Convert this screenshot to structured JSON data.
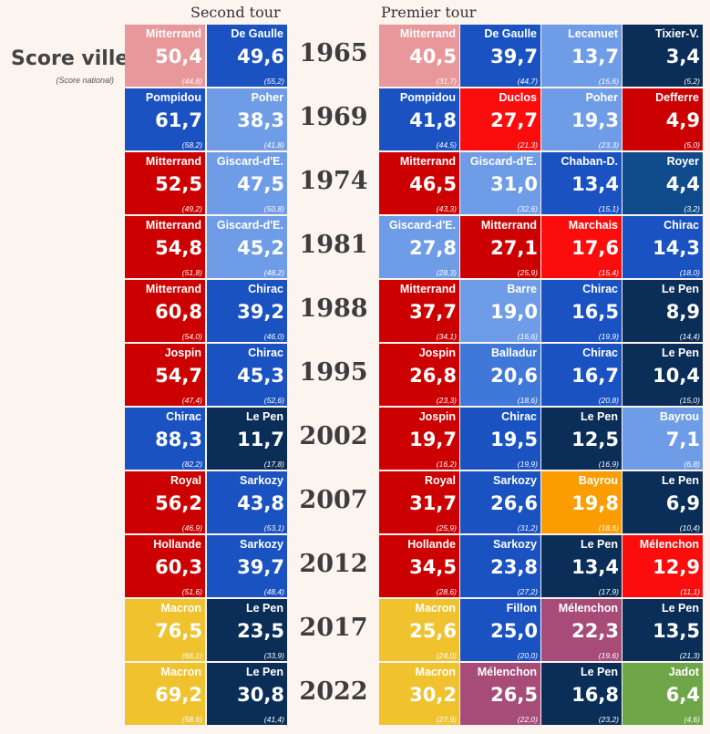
{
  "chart_data": {
    "type": "table",
    "title": "Score ville",
    "subtitle": "(Score national)",
    "headers": {
      "second": "Second tour",
      "first": "Premier tour"
    },
    "colors": {
      "mitterrand65": "#e8979a",
      "gaulle": "#1a52c2",
      "lecanuet": "#6f9ce6",
      "tixier": "#0b2e58",
      "pompidou": "#1a52c2",
      "poher": "#6f9ce6",
      "duclos": "#fb0d0d",
      "defferre": "#cc0000",
      "red": "#cc0000",
      "brightred": "#fb0d0d",
      "giscard": "#6f9ce6",
      "chaban": "#1a52c2",
      "royer": "#104c8c",
      "chirac": "#1a52c2",
      "navy": "#0b2e58",
      "barre": "#6f9ce6",
      "balladur": "#3f78d8",
      "bayrou": "#6f9ce6",
      "bayrou07": "#fb9d00",
      "sarkozy": "#1a52c2",
      "macron": "#f0c22e",
      "fillon": "#1a52c2",
      "melenchon": "#a74b78",
      "jadot": "#6ea648"
    },
    "rows": [
      {
        "year": "1965",
        "second": [
          {
            "name": "Mitterrand",
            "value": "50,4",
            "national": "(44,8)",
            "color": "mitterrand65"
          },
          {
            "name": "De Gaulle",
            "value": "49,6",
            "national": "(55,2)",
            "color": "gaulle"
          }
        ],
        "first": [
          {
            "name": "Mitterrand",
            "value": "40,5",
            "national": "(31,7)",
            "color": "mitterrand65"
          },
          {
            "name": "De Gaulle",
            "value": "39,7",
            "national": "(44,7)",
            "color": "gaulle"
          },
          {
            "name": "Lecanuet",
            "value": "13,7",
            "national": "(15,6)",
            "color": "lecanuet"
          },
          {
            "name": "Tixier-V.",
            "value": "3,4",
            "national": "(5,2)",
            "color": "tixier"
          }
        ]
      },
      {
        "year": "1969",
        "second": [
          {
            "name": "Pompidou",
            "value": "61,7",
            "national": "(58,2)",
            "color": "pompidou"
          },
          {
            "name": "Poher",
            "value": "38,3",
            "national": "(41,8)",
            "color": "poher"
          }
        ],
        "first": [
          {
            "name": "Pompidou",
            "value": "41,8",
            "national": "(44,5)",
            "color": "pompidou"
          },
          {
            "name": "Duclos",
            "value": "27,7",
            "national": "(21,3)",
            "color": "duclos"
          },
          {
            "name": "Poher",
            "value": "19,3",
            "national": "(23,3)",
            "color": "poher"
          },
          {
            "name": "Defferre",
            "value": "4,9",
            "national": "(5,0)",
            "color": "defferre"
          }
        ]
      },
      {
        "year": "1974",
        "second": [
          {
            "name": "Mitterrand",
            "value": "52,5",
            "national": "(49,2)",
            "color": "red"
          },
          {
            "name": "Giscard-d'E.",
            "value": "47,5",
            "national": "(50,8)",
            "color": "giscard"
          }
        ],
        "first": [
          {
            "name": "Mitterrand",
            "value": "46,5",
            "national": "(43,3)",
            "color": "red"
          },
          {
            "name": "Giscard-d'E.",
            "value": "31,0",
            "national": "(32,6)",
            "color": "giscard"
          },
          {
            "name": "Chaban-D.",
            "value": "13,4",
            "national": "(15,1)",
            "color": "chaban"
          },
          {
            "name": "Royer",
            "value": "4,4",
            "national": "(3,2)",
            "color": "royer"
          }
        ]
      },
      {
        "year": "1981",
        "second": [
          {
            "name": "Mitterrand",
            "value": "54,8",
            "national": "(51,8)",
            "color": "red"
          },
          {
            "name": "Giscard-d'E.",
            "value": "45,2",
            "national": "(48,2)",
            "color": "giscard"
          }
        ],
        "first": [
          {
            "name": "Giscard-d'E.",
            "value": "27,8",
            "national": "(28,3)",
            "color": "giscard"
          },
          {
            "name": "Mitterrand",
            "value": "27,1",
            "national": "(25,9)",
            "color": "red"
          },
          {
            "name": "Marchais",
            "value": "17,6",
            "national": "(15,4)",
            "color": "brightred"
          },
          {
            "name": "Chirac",
            "value": "14,3",
            "national": "(18,0)",
            "color": "chirac"
          }
        ]
      },
      {
        "year": "1988",
        "second": [
          {
            "name": "Mitterrand",
            "value": "60,8",
            "national": "(54,0)",
            "color": "red"
          },
          {
            "name": "Chirac",
            "value": "39,2",
            "national": "(46,0)",
            "color": "chirac"
          }
        ],
        "first": [
          {
            "name": "Mitterrand",
            "value": "37,7",
            "national": "(34,1)",
            "color": "red"
          },
          {
            "name": "Barre",
            "value": "19,0",
            "national": "(16,6)",
            "color": "barre"
          },
          {
            "name": "Chirac",
            "value": "16,5",
            "national": "(19,9)",
            "color": "chirac"
          },
          {
            "name": "Le Pen",
            "value": "8,9",
            "national": "(14,4)",
            "color": "navy"
          }
        ]
      },
      {
        "year": "1995",
        "second": [
          {
            "name": "Jospin",
            "value": "54,7",
            "national": "(47,4)",
            "color": "red"
          },
          {
            "name": "Chirac",
            "value": "45,3",
            "national": "(52,6)",
            "color": "chirac"
          }
        ],
        "first": [
          {
            "name": "Jospin",
            "value": "26,8",
            "national": "(23,3)",
            "color": "red"
          },
          {
            "name": "Balladur",
            "value": "20,6",
            "national": "(18,6)",
            "color": "balladur"
          },
          {
            "name": "Chirac",
            "value": "16,7",
            "national": "(20,8)",
            "color": "chirac"
          },
          {
            "name": "Le Pen",
            "value": "10,4",
            "national": "(15,0)",
            "color": "navy"
          }
        ]
      },
      {
        "year": "2002",
        "second": [
          {
            "name": "Chirac",
            "value": "88,3",
            "national": "(82,2)",
            "color": "chirac"
          },
          {
            "name": "Le Pen",
            "value": "11,7",
            "national": "(17,8)",
            "color": "navy"
          }
        ],
        "first": [
          {
            "name": "Jospin",
            "value": "19,7",
            "national": "(16,2)",
            "color": "red"
          },
          {
            "name": "Chirac",
            "value": "19,5",
            "national": "(19,9)",
            "color": "chirac"
          },
          {
            "name": "Le Pen",
            "value": "12,5",
            "national": "(16,9)",
            "color": "navy"
          },
          {
            "name": "Bayrou",
            "value": "7,1",
            "national": "(6,8)",
            "color": "bayrou"
          }
        ]
      },
      {
        "year": "2007",
        "second": [
          {
            "name": "Royal",
            "value": "56,2",
            "national": "(46,9)",
            "color": "red"
          },
          {
            "name": "Sarkozy",
            "value": "43,8",
            "national": "(53,1)",
            "color": "sarkozy"
          }
        ],
        "first": [
          {
            "name": "Royal",
            "value": "31,7",
            "national": "(25,9)",
            "color": "red"
          },
          {
            "name": "Sarkozy",
            "value": "26,6",
            "national": "(31,2)",
            "color": "sarkozy"
          },
          {
            "name": "Bayrou",
            "value": "19,8",
            "national": "(18,6)",
            "color": "bayrou07"
          },
          {
            "name": "Le Pen",
            "value": "6,9",
            "national": "(10,4)",
            "color": "navy"
          }
        ]
      },
      {
        "year": "2012",
        "second": [
          {
            "name": "Hollande",
            "value": "60,3",
            "national": "(51,6)",
            "color": "red"
          },
          {
            "name": "Sarkozy",
            "value": "39,7",
            "national": "(48,4)",
            "color": "sarkozy"
          }
        ],
        "first": [
          {
            "name": "Hollande",
            "value": "34,5",
            "national": "(28,6)",
            "color": "red"
          },
          {
            "name": "Sarkozy",
            "value": "23,8",
            "national": "(27,2)",
            "color": "sarkozy"
          },
          {
            "name": "Le Pen",
            "value": "13,4",
            "national": "(17,9)",
            "color": "navy"
          },
          {
            "name": "Mélenchon",
            "value": "12,9",
            "national": "(11,1)",
            "color": "brightred"
          }
        ]
      },
      {
        "year": "2017",
        "second": [
          {
            "name": "Macron",
            "value": "76,5",
            "national": "(66,1)",
            "color": "macron"
          },
          {
            "name": "Le Pen",
            "value": "23,5",
            "national": "(33,9)",
            "color": "navy"
          }
        ],
        "first": [
          {
            "name": "Macron",
            "value": "25,6",
            "national": "(24,0)",
            "color": "macron"
          },
          {
            "name": "Fillon",
            "value": "25,0",
            "national": "(20,0)",
            "color": "fillon"
          },
          {
            "name": "Mélenchon",
            "value": "22,3",
            "national": "(19,6)",
            "color": "melenchon"
          },
          {
            "name": "Le Pen",
            "value": "13,5",
            "national": "(21,3)",
            "color": "navy"
          }
        ]
      },
      {
        "year": "2022",
        "second": [
          {
            "name": "Macron",
            "value": "69,2",
            "national": "(58,6)",
            "color": "macron"
          },
          {
            "name": "Le Pen",
            "value": "30,8",
            "national": "(41,4)",
            "color": "navy"
          }
        ],
        "first": [
          {
            "name": "Macron",
            "value": "30,2",
            "national": "(27,9)",
            "color": "macron"
          },
          {
            "name": "Mélenchon",
            "value": "26,5",
            "national": "(22,0)",
            "color": "melenchon"
          },
          {
            "name": "Le Pen",
            "value": "16,8",
            "national": "(23,2)",
            "color": "navy"
          },
          {
            "name": "Jadot",
            "value": "6,4",
            "national": "(4,6)",
            "color": "jadot"
          }
        ]
      }
    ]
  }
}
